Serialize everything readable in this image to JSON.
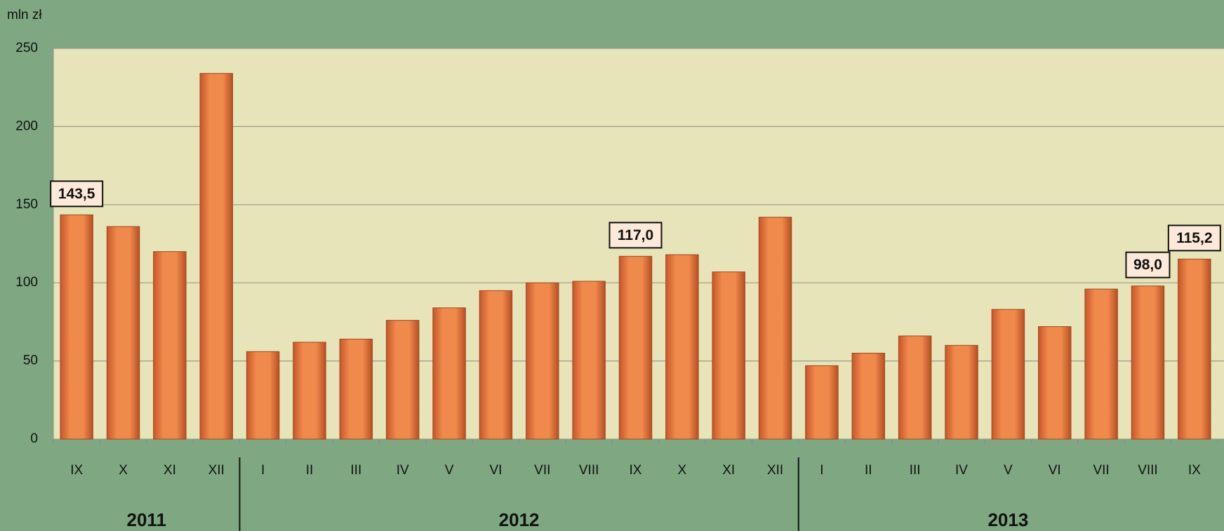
{
  "chart_data": {
    "type": "bar",
    "y_unit_label": "mln zł",
    "categories": [
      "IX",
      "X",
      "XI",
      "XII",
      "I",
      "II",
      "III",
      "IV",
      "V",
      "VI",
      "VII",
      "VIII",
      "IX",
      "X",
      "XI",
      "XII",
      "I",
      "II",
      "III",
      "IV",
      "V",
      "VI",
      "VII",
      "VIII",
      "IX"
    ],
    "values": [
      143.5,
      136,
      120,
      234,
      56,
      62,
      64,
      76,
      84,
      95,
      100,
      101,
      117.0,
      118,
      107,
      142,
      47,
      55,
      66,
      60,
      83,
      72,
      96,
      98.0,
      115.2
    ],
    "value_labels": [
      "143,5",
      null,
      null,
      null,
      null,
      null,
      null,
      null,
      null,
      null,
      null,
      null,
      "117,0",
      null,
      null,
      null,
      null,
      null,
      null,
      null,
      null,
      null,
      null,
      "98,0",
      "115,2"
    ],
    "groups": [
      {
        "label": "2011",
        "start": 0,
        "end": 3
      },
      {
        "label": "2012",
        "start": 4,
        "end": 15
      },
      {
        "label": "2013",
        "start": 16,
        "end": 24
      }
    ],
    "color": "#ee8446",
    "ylim": [
      0,
      250
    ],
    "yticks": [
      0,
      50,
      100,
      150,
      200,
      250
    ],
    "grid": true
  }
}
